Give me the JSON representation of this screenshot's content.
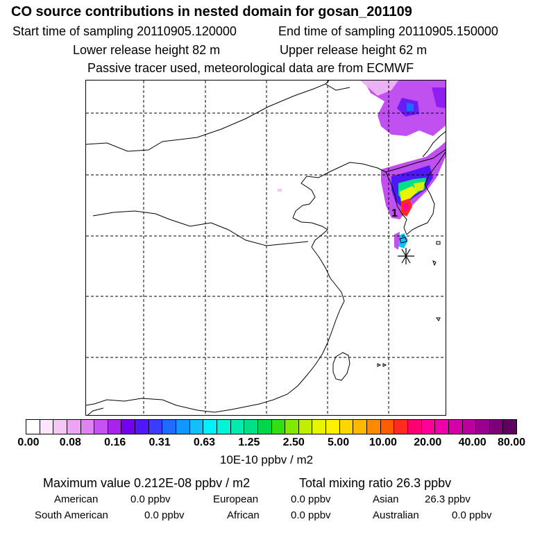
{
  "chart_data": {
    "type": "heatmap",
    "title": "CO  source contributions in nested domain for gosan_201109",
    "start_time_label": "Start time of sampling 20110905.120000",
    "end_time_label": "End time of sampling 20110905.150000",
    "lower_height_label": "Lower release height   82 m",
    "upper_height_label": "Upper release height   62 m",
    "tracer_note": "Passive tracer used, meteorological data are from ECMWF",
    "marker_label": "1",
    "colorbar": {
      "units": "10E-10 ppbv / m2",
      "ticks": [
        "0.00",
        "0.08",
        "0.16",
        "0.31",
        "0.63",
        "1.25",
        "2.50",
        "5.00",
        "10.00",
        "20.00",
        "40.00",
        "80.00"
      ],
      "colors": [
        "#ffffff",
        "#fde6fd",
        "#f6c6f6",
        "#eea4f4",
        "#df82f2",
        "#c652f0",
        "#aa22ee",
        "#7400f0",
        "#5018f8",
        "#3a3cff",
        "#1e6cff",
        "#1296ff",
        "#12c0ff",
        "#00f0ff",
        "#00f4d8",
        "#00ecb0",
        "#00e088",
        "#00d84a",
        "#30e010",
        "#80ea00",
        "#c0f000",
        "#e8f400",
        "#fff000",
        "#ffd600",
        "#ffb800",
        "#ff8a00",
        "#ff5c00",
        "#ff2a20",
        "#ff0070",
        "#ff0098",
        "#f000a8",
        "#d400a8",
        "#b8009c",
        "#9a0090",
        "#7e0078",
        "#600060"
      ]
    },
    "max_value_label": "Maximum value  0.212E-08 ppbv / m2",
    "total_label": "Total mixing ratio       26.3 ppbv",
    "regions": [
      {
        "name": "American",
        "value": "0.0 ppbv"
      },
      {
        "name": "European",
        "value": "0.0 ppbv"
      },
      {
        "name": "Asian",
        "value": "26.3 ppbv"
      },
      {
        "name": "South American",
        "value": "0.0 ppbv"
      },
      {
        "name": "African",
        "value": "0.0 ppbv"
      },
      {
        "name": "Australian",
        "value": "0.0 ppbv"
      }
    ]
  }
}
